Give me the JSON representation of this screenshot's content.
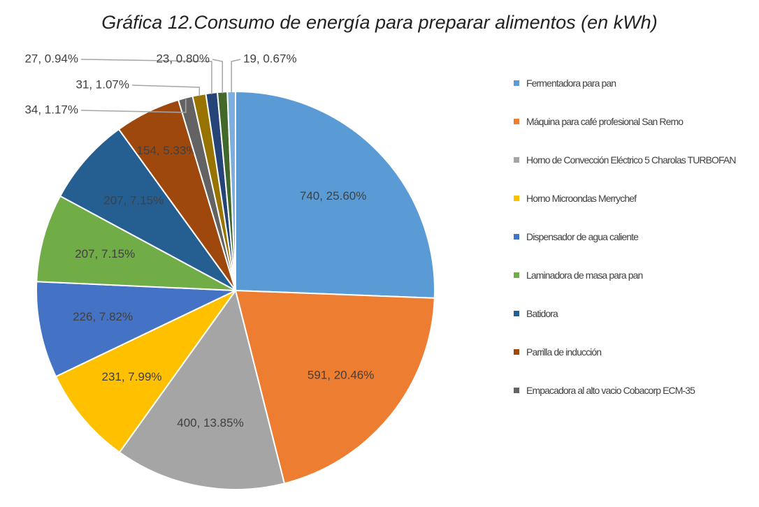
{
  "chart_data": {
    "type": "pie",
    "title": "Gráfica 12.Consumo de energía para preparar alimentos (en kWh)",
    "categories": [
      "Fermentadora para pan",
      "Máquina para café profesional San Remo",
      "Horno de Convección Eléctrico 5 Charolas TURBOFAN",
      "Horno Microondas Merrychef",
      "Dispensador de agua caliente",
      "Laminadora de masa para pan",
      "Batidora",
      "Parrilla de inducción",
      "Empacadora al alto vacio Cobacorp ECM-35",
      null,
      null,
      null,
      null
    ],
    "values": [
      740,
      591,
      400,
      231,
      226,
      207,
      207,
      154,
      34,
      31,
      27,
      23,
      19
    ],
    "value_labels": [
      "740, 25.60%",
      "591, 20.46%",
      "400, 13.85%",
      "231, 7.99%",
      "226, 7.82%",
      "207, 7.15%",
      "207, 7.15%",
      "154, 5.33%",
      "34, 1.17%",
      "31, 1.07%",
      "27, 0.94%",
      "23, 0.80%",
      "19, 0.67%"
    ],
    "colors": [
      "#5b9bd5",
      "#ed7d31",
      "#a5a5a5",
      "#ffc000",
      "#4472c4",
      "#70ad47",
      "#255e91",
      "#9e480e",
      "#636363",
      "#997300",
      "#264478",
      "#43682b",
      "#7cafdd"
    ]
  }
}
